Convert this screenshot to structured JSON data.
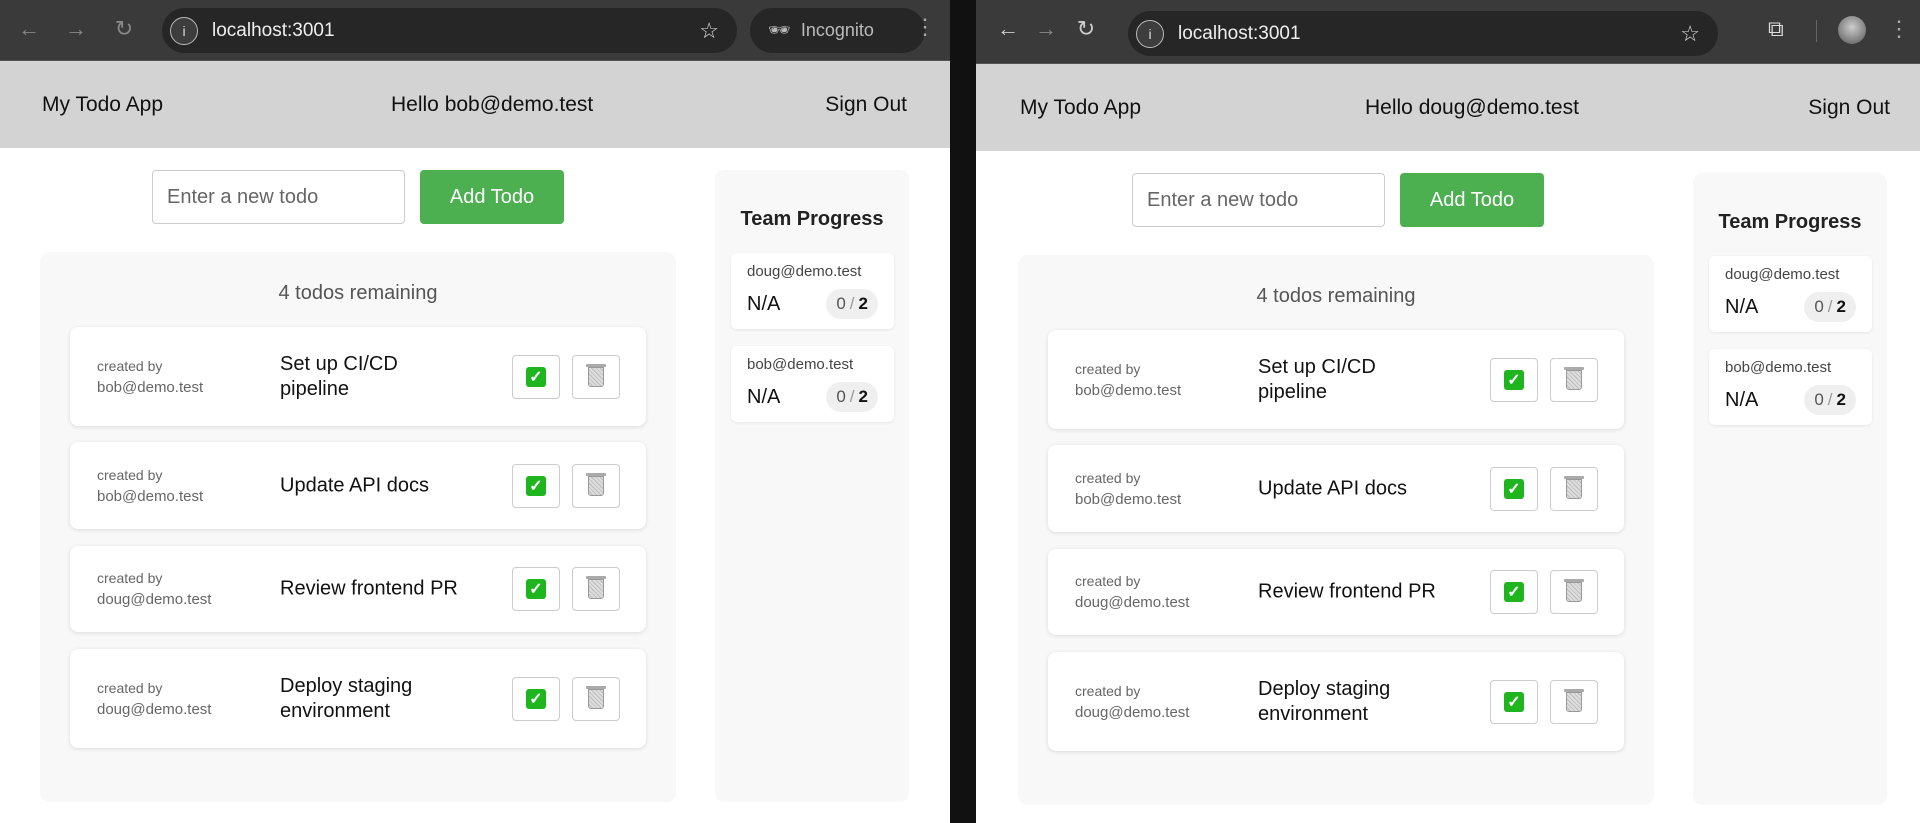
{
  "windows": [
    {
      "url": "localhost:3001",
      "profile_label": "Incognito",
      "header": {
        "app_title": "My Todo App",
        "greeting": "Hello bob@demo.test",
        "sign_out": "Sign Out"
      },
      "new_todo": {
        "placeholder": "Enter a new todo",
        "value": "",
        "add_label": "Add Todo"
      },
      "remaining": "4 todos remaining",
      "todos": [
        {
          "created_by_label": "created by",
          "creator": "bob@demo.test",
          "title": "Set up CI/CD pipeline"
        },
        {
          "created_by_label": "created by",
          "creator": "bob@demo.test",
          "title": "Update API docs"
        },
        {
          "created_by_label": "created by",
          "creator": "doug@demo.test",
          "title": "Review frontend PR"
        },
        {
          "created_by_label": "created by",
          "creator": "doug@demo.test",
          "title": "Deploy staging environment"
        }
      ],
      "team": {
        "title": "Team Progress",
        "members": [
          {
            "email": "doug@demo.test",
            "status": "N/A",
            "done": "0",
            "sep": "/",
            "total": "2"
          },
          {
            "email": "bob@demo.test",
            "status": "N/A",
            "done": "0",
            "sep": "/",
            "total": "2"
          }
        ]
      }
    },
    {
      "url": "localhost:3001",
      "header": {
        "app_title": "My Todo App",
        "greeting": "Hello doug@demo.test",
        "sign_out": "Sign Out"
      },
      "new_todo": {
        "placeholder": "Enter a new todo",
        "value": "",
        "add_label": "Add Todo"
      },
      "remaining": "4 todos remaining",
      "todos": [
        {
          "created_by_label": "created by",
          "creator": "bob@demo.test",
          "title": "Set up CI/CD pipeline"
        },
        {
          "created_by_label": "created by",
          "creator": "bob@demo.test",
          "title": "Update API docs"
        },
        {
          "created_by_label": "created by",
          "creator": "doug@demo.test",
          "title": "Review frontend PR"
        },
        {
          "created_by_label": "created by",
          "creator": "doug@demo.test",
          "title": "Deploy staging environment"
        }
      ],
      "team": {
        "title": "Team Progress",
        "members": [
          {
            "email": "doug@demo.test",
            "status": "N/A",
            "done": "0",
            "sep": "/",
            "total": "2"
          },
          {
            "email": "bob@demo.test",
            "status": "N/A",
            "done": "0",
            "sep": "/",
            "total": "2"
          }
        ]
      }
    }
  ],
  "colors": {
    "accent": "#4caf50",
    "header_bg": "#d3d3d3",
    "panel_bg": "#f8f8f8",
    "check": "#1fb51f"
  }
}
